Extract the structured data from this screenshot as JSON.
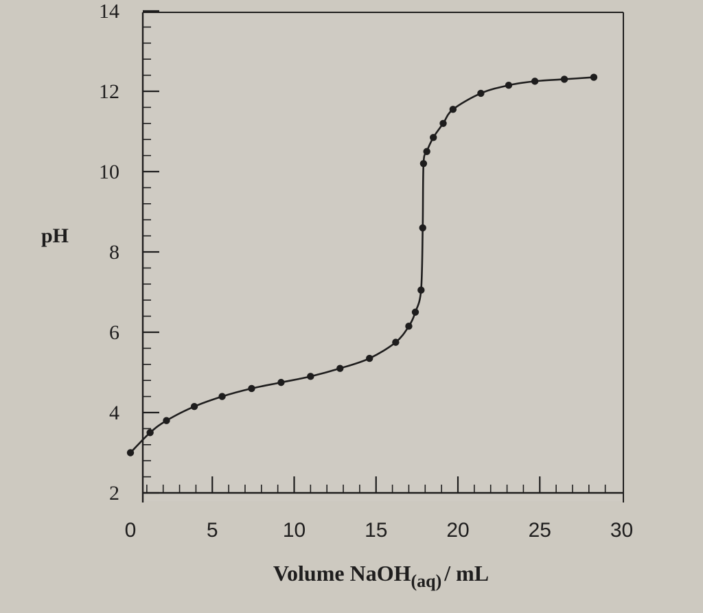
{
  "chart_data": {
    "type": "line",
    "title": "",
    "xlabel_main": "Volume NaOH",
    "xlabel_sub": "(aq)",
    "xlabel_unit": "/ mL",
    "ylabel": "pH",
    "xlim": [
      0,
      30
    ],
    "ylim": [
      2,
      14
    ],
    "x_ticks": [
      "0",
      "5",
      "10",
      "15",
      "20",
      "25",
      "30"
    ],
    "y_ticks": [
      "2",
      "4",
      "6",
      "8",
      "10",
      "12",
      "14"
    ],
    "series": [
      {
        "x": [
          0,
          1.2,
          2.2,
          3.9,
          5.6,
          7.4,
          9.2,
          11.0,
          12.8,
          14.6,
          16.2,
          17.0,
          17.4,
          17.75,
          17.85,
          17.9,
          18.1,
          18.5,
          19.1,
          19.7,
          21.4,
          23.1,
          24.7,
          26.5,
          28.3
        ],
        "y": [
          3.0,
          3.5,
          3.8,
          4.15,
          4.4,
          4.6,
          4.75,
          4.9,
          5.1,
          5.35,
          5.75,
          6.15,
          6.5,
          7.05,
          8.6,
          10.2,
          10.5,
          10.85,
          11.2,
          11.55,
          11.95,
          12.15,
          12.25,
          12.3,
          12.35
        ]
      }
    ]
  }
}
